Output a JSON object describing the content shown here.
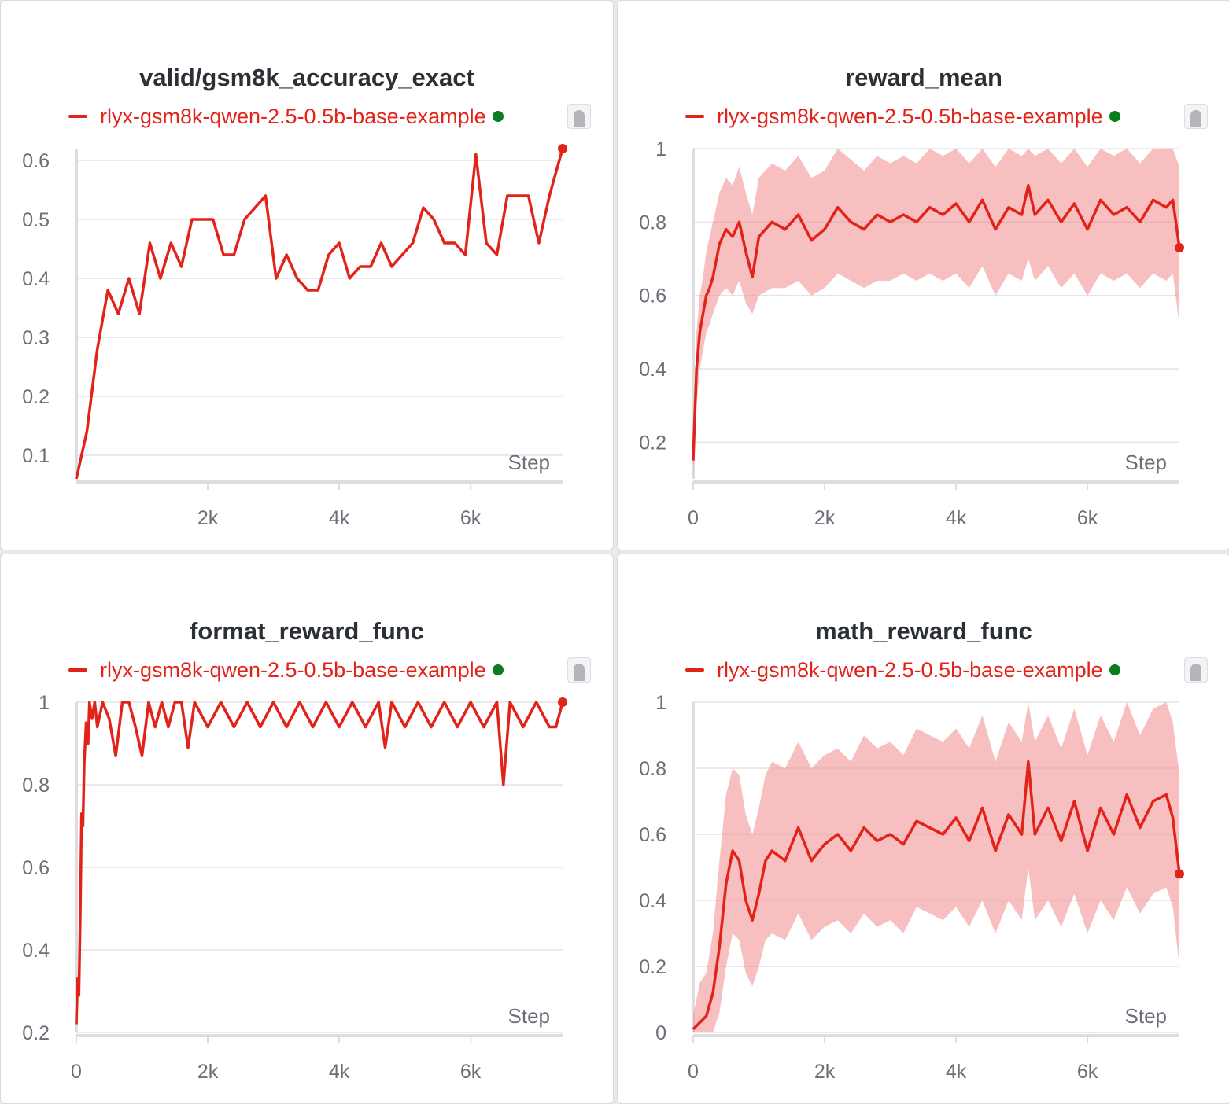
{
  "run_name": "rlyx-gsm8k-qwen-2.5-0.5b-base-example",
  "colors": {
    "series": "#e2231a",
    "band": "#f08a8a",
    "status": "#0a7d1e"
  },
  "chart_data": [
    {
      "type": "line",
      "title": "valid/gsm8k_accuracy_exact",
      "xlabel": "Step",
      "xlim": [
        0,
        7400
      ],
      "ylim": [
        0.06,
        0.62
      ],
      "xticks": [
        2000,
        4000,
        6000
      ],
      "xtick_labels": [
        "2k",
        "4k",
        "6k"
      ],
      "yticks": [
        0.1,
        0.2,
        0.3,
        0.4,
        0.5,
        0.6
      ],
      "ytick_labels": [
        "0.1",
        "0.2",
        "0.3",
        "0.4",
        "0.5",
        "0.6"
      ],
      "grid": true,
      "legend": "top-left",
      "series": [
        {
          "name": "rlyx-gsm8k-qwen-2.5-0.5b-base-example",
          "x": [
            0,
            160,
            320,
            480,
            640,
            800,
            960,
            1120,
            1280,
            1440,
            1600,
            1760,
            1920,
            2080,
            2240,
            2400,
            2560,
            2720,
            2880,
            3040,
            3200,
            3360,
            3520,
            3680,
            3840,
            4000,
            4160,
            4320,
            4480,
            4640,
            4800,
            4960,
            5120,
            5280,
            5440,
            5600,
            5760,
            5920,
            6080,
            6240,
            6400,
            6560,
            6720,
            6880,
            7040,
            7200,
            7400
          ],
          "values": [
            0.06,
            0.14,
            0.28,
            0.38,
            0.34,
            0.4,
            0.34,
            0.46,
            0.4,
            0.46,
            0.42,
            0.5,
            0.5,
            0.5,
            0.44,
            0.44,
            0.5,
            0.52,
            0.54,
            0.4,
            0.44,
            0.4,
            0.38,
            0.38,
            0.44,
            0.46,
            0.4,
            0.42,
            0.42,
            0.46,
            0.42,
            0.44,
            0.46,
            0.52,
            0.5,
            0.46,
            0.46,
            0.44,
            0.61,
            0.46,
            0.44,
            0.54,
            0.54,
            0.54,
            0.46,
            0.54,
            0.62
          ]
        }
      ]
    },
    {
      "type": "line",
      "title": "reward_mean",
      "xlabel": "Step",
      "xlim": [
        0,
        7400
      ],
      "ylim": [
        0.1,
        1.0
      ],
      "xticks": [
        0,
        2000,
        4000,
        6000
      ],
      "xtick_labels": [
        "0",
        "2k",
        "4k",
        "6k"
      ],
      "yticks": [
        0.2,
        0.4,
        0.6,
        0.8,
        1.0
      ],
      "ytick_labels": [
        "0.2",
        "0.4",
        "0.6",
        "0.8",
        "1"
      ],
      "grid": true,
      "legend": "top-left",
      "series": [
        {
          "name": "rlyx-gsm8k-qwen-2.5-0.5b-base-example",
          "x": [
            0,
            50,
            100,
            150,
            200,
            250,
            300,
            400,
            500,
            600,
            700,
            800,
            900,
            1000,
            1200,
            1400,
            1600,
            1800,
            2000,
            2200,
            2400,
            2600,
            2800,
            3000,
            3200,
            3400,
            3600,
            3800,
            4000,
            4200,
            4400,
            4600,
            4800,
            5000,
            5100,
            5200,
            5400,
            5600,
            5800,
            6000,
            6200,
            6400,
            6600,
            6800,
            7000,
            7200,
            7300,
            7400
          ],
          "values": [
            0.15,
            0.4,
            0.5,
            0.55,
            0.6,
            0.62,
            0.65,
            0.74,
            0.78,
            0.76,
            0.8,
            0.72,
            0.65,
            0.76,
            0.8,
            0.78,
            0.82,
            0.75,
            0.78,
            0.84,
            0.8,
            0.78,
            0.82,
            0.8,
            0.82,
            0.8,
            0.84,
            0.82,
            0.85,
            0.8,
            0.86,
            0.78,
            0.84,
            0.82,
            0.9,
            0.82,
            0.86,
            0.8,
            0.85,
            0.78,
            0.86,
            0.82,
            0.84,
            0.8,
            0.86,
            0.84,
            0.86,
            0.73
          ],
          "band_low": [
            0.1,
            0.3,
            0.4,
            0.45,
            0.5,
            0.52,
            0.55,
            0.6,
            0.62,
            0.6,
            0.64,
            0.58,
            0.55,
            0.6,
            0.62,
            0.62,
            0.64,
            0.6,
            0.62,
            0.66,
            0.64,
            0.62,
            0.64,
            0.64,
            0.66,
            0.64,
            0.66,
            0.64,
            0.66,
            0.62,
            0.68,
            0.6,
            0.66,
            0.64,
            0.7,
            0.64,
            0.68,
            0.62,
            0.66,
            0.6,
            0.66,
            0.64,
            0.66,
            0.62,
            0.66,
            0.64,
            0.66,
            0.52
          ],
          "band_high": [
            0.2,
            0.5,
            0.6,
            0.65,
            0.72,
            0.76,
            0.8,
            0.88,
            0.92,
            0.9,
            0.95,
            0.88,
            0.82,
            0.92,
            0.96,
            0.94,
            0.98,
            0.92,
            0.94,
            1.0,
            0.97,
            0.94,
            0.98,
            0.96,
            0.98,
            0.96,
            1.0,
            0.98,
            1.0,
            0.96,
            1.0,
            0.95,
            1.0,
            0.98,
            1.0,
            0.98,
            1.0,
            0.96,
            1.0,
            0.95,
            1.0,
            0.98,
            1.0,
            0.96,
            1.0,
            1.0,
            1.0,
            0.95
          ]
        }
      ]
    },
    {
      "type": "line",
      "title": "format_reward_func",
      "xlabel": "Step",
      "xlim": [
        0,
        7400
      ],
      "ylim": [
        0.2,
        1.0
      ],
      "xticks": [
        0,
        2000,
        4000,
        6000
      ],
      "xtick_labels": [
        "0",
        "2k",
        "4k",
        "6k"
      ],
      "yticks": [
        0.2,
        0.4,
        0.6,
        0.8,
        1.0
      ],
      "ytick_labels": [
        "0.2",
        "0.4",
        "0.6",
        "0.8",
        "1"
      ],
      "grid": true,
      "legend": "top-left",
      "series": [
        {
          "name": "rlyx-gsm8k-qwen-2.5-0.5b-base-example",
          "x": [
            0,
            20,
            40,
            60,
            80,
            100,
            120,
            150,
            180,
            200,
            240,
            280,
            320,
            400,
            500,
            600,
            700,
            800,
            900,
            1000,
            1100,
            1200,
            1300,
            1400,
            1500,
            1600,
            1700,
            1800,
            2000,
            2200,
            2400,
            2600,
            2800,
            3000,
            3200,
            3400,
            3600,
            3800,
            4000,
            4200,
            4400,
            4600,
            4700,
            4800,
            5000,
            5200,
            5400,
            5600,
            5800,
            6000,
            6200,
            6400,
            6500,
            6600,
            6800,
            7000,
            7200,
            7300,
            7400
          ],
          "values": [
            0.22,
            0.33,
            0.29,
            0.48,
            0.73,
            0.7,
            0.85,
            0.95,
            0.9,
            1.0,
            0.96,
            1.0,
            0.94,
            1.0,
            0.96,
            0.87,
            1.0,
            1.0,
            0.94,
            0.87,
            1.0,
            0.94,
            1.0,
            0.94,
            1.0,
            1.0,
            0.89,
            1.0,
            0.94,
            1.0,
            0.94,
            1.0,
            0.94,
            1.0,
            0.94,
            1.0,
            0.94,
            1.0,
            0.94,
            1.0,
            0.94,
            1.0,
            0.89,
            1.0,
            0.94,
            1.0,
            0.94,
            1.0,
            0.94,
            1.0,
            0.94,
            1.0,
            0.8,
            1.0,
            0.94,
            1.0,
            0.94,
            0.94,
            1.0
          ]
        }
      ]
    },
    {
      "type": "line",
      "title": "math_reward_func",
      "xlabel": "Step",
      "xlim": [
        0,
        7400
      ],
      "ylim": [
        0,
        1.0
      ],
      "xticks": [
        0,
        2000,
        4000,
        6000
      ],
      "xtick_labels": [
        "0",
        "2k",
        "4k",
        "6k"
      ],
      "yticks": [
        0,
        0.2,
        0.4,
        0.6,
        0.8,
        1.0
      ],
      "ytick_labels": [
        "0",
        "0.2",
        "0.4",
        "0.6",
        "0.8",
        "1"
      ],
      "grid": true,
      "legend": "top-left",
      "series": [
        {
          "name": "rlyx-gsm8k-qwen-2.5-0.5b-base-example",
          "x": [
            0,
            100,
            200,
            300,
            400,
            500,
            600,
            700,
            800,
            900,
            1000,
            1100,
            1200,
            1400,
            1600,
            1800,
            2000,
            2200,
            2400,
            2600,
            2800,
            3000,
            3200,
            3400,
            3600,
            3800,
            4000,
            4200,
            4400,
            4600,
            4800,
            5000,
            5100,
            5200,
            5400,
            5600,
            5800,
            6000,
            6200,
            6400,
            6600,
            6800,
            7000,
            7200,
            7300,
            7400
          ],
          "values": [
            0.01,
            0.03,
            0.05,
            0.12,
            0.26,
            0.45,
            0.55,
            0.52,
            0.4,
            0.34,
            0.42,
            0.52,
            0.55,
            0.52,
            0.62,
            0.52,
            0.57,
            0.6,
            0.55,
            0.62,
            0.58,
            0.6,
            0.57,
            0.64,
            0.62,
            0.6,
            0.65,
            0.58,
            0.68,
            0.55,
            0.66,
            0.6,
            0.82,
            0.6,
            0.68,
            0.58,
            0.7,
            0.55,
            0.68,
            0.6,
            0.72,
            0.62,
            0.7,
            0.72,
            0.65,
            0.48
          ],
          "band_low": [
            0.0,
            0.0,
            0.0,
            0.0,
            0.06,
            0.2,
            0.3,
            0.28,
            0.18,
            0.14,
            0.2,
            0.28,
            0.3,
            0.28,
            0.36,
            0.28,
            0.32,
            0.34,
            0.3,
            0.36,
            0.32,
            0.34,
            0.3,
            0.38,
            0.36,
            0.34,
            0.38,
            0.32,
            0.4,
            0.3,
            0.4,
            0.34,
            0.5,
            0.34,
            0.4,
            0.32,
            0.42,
            0.3,
            0.4,
            0.34,
            0.44,
            0.36,
            0.42,
            0.44,
            0.38,
            0.2
          ],
          "band_high": [
            0.05,
            0.15,
            0.18,
            0.3,
            0.52,
            0.72,
            0.8,
            0.78,
            0.66,
            0.6,
            0.68,
            0.78,
            0.82,
            0.8,
            0.88,
            0.8,
            0.84,
            0.86,
            0.82,
            0.9,
            0.86,
            0.88,
            0.84,
            0.92,
            0.9,
            0.88,
            0.92,
            0.86,
            0.96,
            0.82,
            0.94,
            0.88,
            1.0,
            0.88,
            0.96,
            0.86,
            0.98,
            0.84,
            0.96,
            0.88,
            1.0,
            0.9,
            0.98,
            1.0,
            0.94,
            0.78
          ]
        }
      ]
    }
  ]
}
